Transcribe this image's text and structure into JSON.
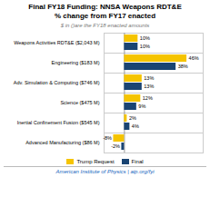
{
  "chart_data": {
    "type": "bar",
    "orientation": "horizontal",
    "title": "Final FY18 Funding: NNSA Weapons RDT&E\n% change from FY17 enacted",
    "subtitle": "$ in ()are the FY18 enacted amounts",
    "annotations": [
      "American Institute of Physics  |  aip.org/fyi"
    ],
    "categories": [
      "Weapons Activities RDT&E ($2,043 M)",
      "Engineering ($183 M)",
      "Adv. Simulation & Computing ($746 M)",
      "Science ($475 M)",
      "Inertial Confinement Fusion ($545 M)",
      "Advanced Manufacturing ($86 M)"
    ],
    "series": [
      {
        "name": "Trump Request",
        "color": "#F5C400",
        "values": [
          10,
          46,
          13,
          12,
          2,
          -8
        ],
        "value_labels": [
          "10%",
          "46%",
          "13%",
          "12%",
          "2%",
          "-8%"
        ]
      },
      {
        "name": "Final",
        "color": "#1A4472",
        "values": [
          10,
          38,
          13,
          9,
          4,
          -2
        ],
        "value_labels": [
          "10%",
          "38%",
          "13%",
          "9%",
          "4%",
          "-2%"
        ]
      }
    ],
    "xlim": [
      -15,
      58
    ],
    "grid": true,
    "legend": "bottom",
    "data_labels": true,
    "tick_labels": "y"
  }
}
